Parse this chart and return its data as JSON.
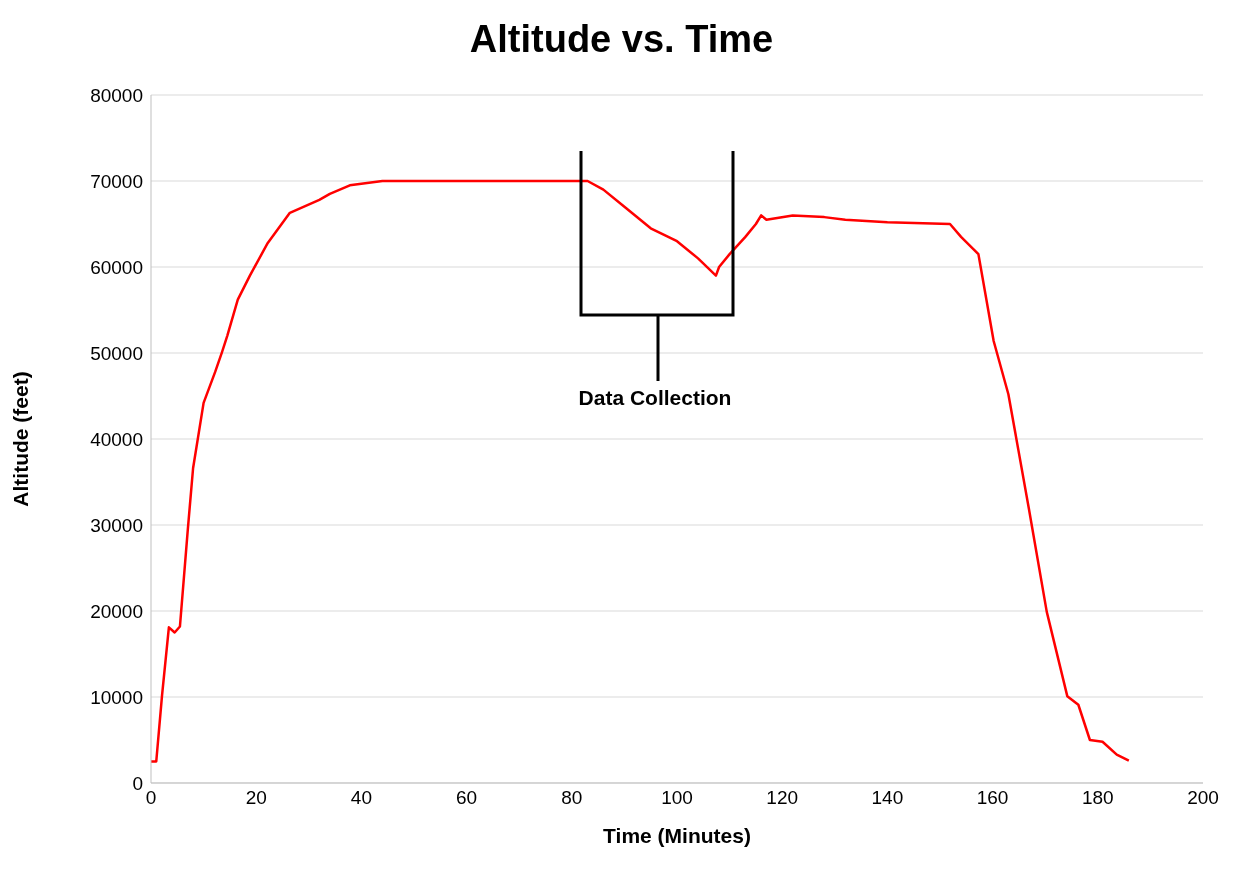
{
  "chart_data": {
    "type": "line",
    "title": "Altitude vs. Time",
    "xlabel": "Time (Minutes)",
    "ylabel": "Altitude (feet)",
    "x": [
      0,
      1,
      2.1,
      3.4,
      4.5,
      5.5,
      7,
      8,
      10,
      12.2,
      13.5,
      14.5,
      16.5,
      18.8,
      22.2,
      26.4,
      32,
      34,
      37.8,
      44,
      83,
      86,
      90,
      95,
      100,
      104,
      107.4,
      108,
      110,
      113,
      115,
      116,
      117,
      122,
      128,
      132,
      140,
      151.9,
      154,
      157.3,
      160.2,
      163,
      166.9,
      170.3,
      174.2,
      176.3,
      178.5,
      180.9,
      183.6,
      185.9
    ],
    "series": [
      {
        "color": "#ff0000",
        "values": [
          2500,
          2500,
          10200,
          18100,
          17500,
          18200,
          29500,
          36600,
          44200,
          47800,
          50100,
          52000,
          56200,
          59000,
          62800,
          66300,
          67800,
          68500,
          69500,
          70000,
          70000,
          69000,
          67000,
          64500,
          63000,
          61000,
          59000,
          60000,
          61500,
          63500,
          65000,
          66000,
          65500,
          66000,
          65800,
          65500,
          65200,
          65000,
          63500,
          61500,
          51400,
          45200,
          31900,
          19900,
          10100,
          9100,
          5000,
          4800,
          3300,
          2600
        ]
      }
    ],
    "xlim": [
      0,
      200
    ],
    "xticks": [
      0,
      20,
      40,
      60,
      80,
      100,
      120,
      140,
      160,
      180,
      200
    ],
    "ylim": [
      0,
      80000
    ],
    "yticks": [
      0,
      10000,
      20000,
      30000,
      40000,
      50000,
      60000,
      70000,
      80000
    ],
    "grid": "y",
    "legend": false,
    "marker": "none",
    "line_style": "solid",
    "annotations": [
      "Data Collection"
    ]
  }
}
